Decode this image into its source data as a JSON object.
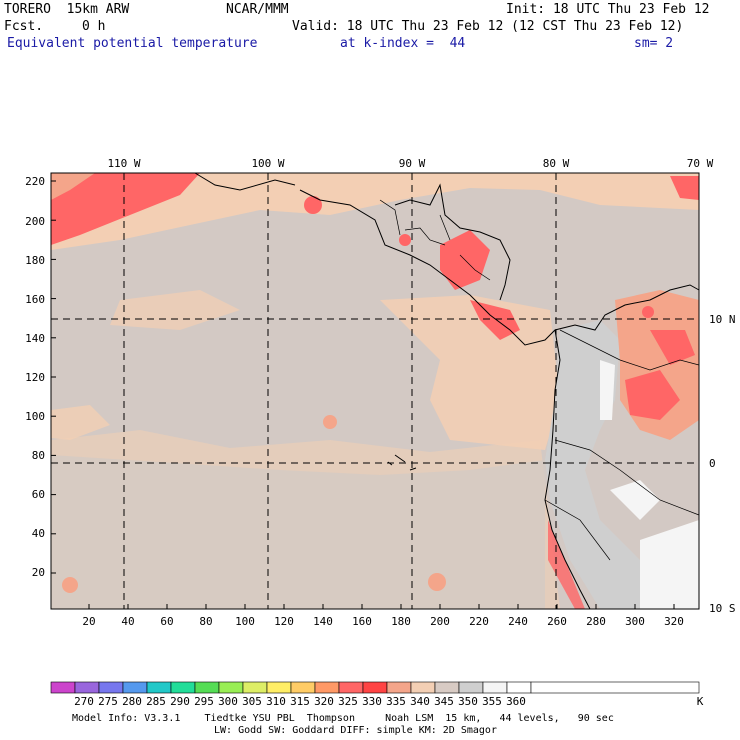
{
  "header": {
    "model": "TORERO  15km ARW",
    "org": "NCAR/MMM",
    "init": "Init: 18 UTC Thu 23 Feb 12",
    "fcst_label": "Fcst.",
    "fcst_value": "0 h",
    "valid": "Valid: 18 UTC Thu 23 Feb 12 (12 CST Thu 23 Feb 12)",
    "field": "Equivalent potential temperature",
    "level": "at k-index =  44",
    "smoothing": "sm= 2"
  },
  "map": {
    "lon_labels": [
      "110 W",
      "100 W",
      "90 W",
      "80 W",
      "70 W"
    ],
    "lat_labels": [
      "10 N",
      "0",
      "10 S"
    ],
    "y_ticks": [
      "220",
      "200",
      "180",
      "160",
      "140",
      "120",
      "100",
      "80",
      "60",
      "40",
      "20"
    ],
    "x_ticks": [
      "20",
      "40",
      "60",
      "80",
      "100",
      "120",
      "140",
      "160",
      "180",
      "200",
      "220",
      "240",
      "260",
      "280",
      "300",
      "320"
    ]
  },
  "colorbar": {
    "unit": "K",
    "labels": [
      "270",
      "275",
      "280",
      "285",
      "290",
      "295",
      "300",
      "305",
      "310",
      "315",
      "320",
      "325",
      "330",
      "335",
      "340",
      "345",
      "350",
      "355",
      "360"
    ],
    "colors": [
      "#cc44cc",
      "#9966dd",
      "#7777ee",
      "#5599ee",
      "#22c8c8",
      "#22dd99",
      "#55dd55",
      "#99ee55",
      "#ddee66",
      "#ffee66",
      "#ffcc66",
      "#ff9966",
      "#ff6666",
      "#ff4444",
      "#f4a58a",
      "#f3cfb4",
      "#d8cbc4",
      "#cfcfcf",
      "#f5f5f5",
      "#ffffff"
    ]
  },
  "footer": {
    "line1": "Model Info: V3.3.1    Tiedtke YSU PBL  Thompson     Noah LSM  15 km,   44 levels,   90 sec",
    "line2": "LW: Godd SW: Goddard DIFF: simple KM: 2D Smagor"
  }
}
